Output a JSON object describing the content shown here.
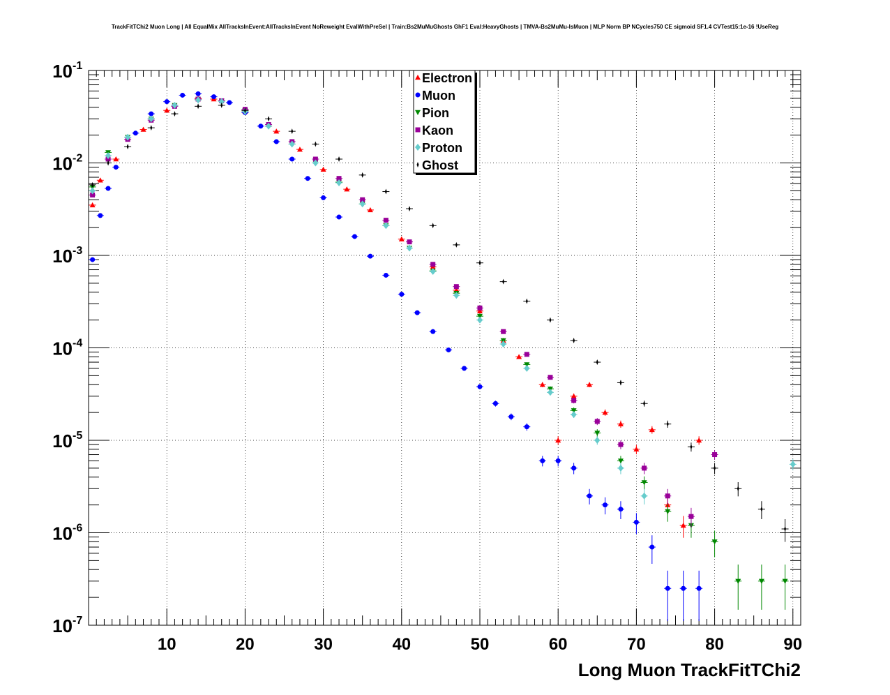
{
  "chart_data": {
    "type": "scatter",
    "title": "TrackFitTChi2 Muon Long | All EqualMix AllTracksInEvent:AllTracksInEvent NoReweight EvalWithPreSel | Train:Bs2MuMuGhosts GhF1 Eval:HeavyGhosts | TMVA-Bs2MuMu-IsMuon | MLP Norm BP NCycles750 CE sigmoid SF1.4 CVTest15:1e-16 !UseReg",
    "xlabel": "Long Muon TrackFitTChi2",
    "ylabel": "",
    "xlim": [
      0,
      91
    ],
    "ylim": [
      1e-07,
      0.1
    ],
    "log_y": true,
    "grid": true,
    "legend_position": "top-center",
    "x_ticks": [
      10,
      20,
      30,
      40,
      50,
      60,
      70,
      80,
      90
    ],
    "x_tick_labels": [
      "10",
      "20",
      "30",
      "40",
      "50",
      "60",
      "70",
      "80",
      "90"
    ],
    "y_ticks": [
      1e-07,
      1e-06,
      1e-05,
      0.0001,
      0.001,
      0.01,
      0.1
    ],
    "y_tick_labels": [
      {
        "base": "10",
        "exp": "-7"
      },
      {
        "base": "10",
        "exp": "-6"
      },
      {
        "base": "10",
        "exp": "-5"
      },
      {
        "base": "10",
        "exp": "-4"
      },
      {
        "base": "10",
        "exp": "-3"
      },
      {
        "base": "10",
        "exp": "-2"
      },
      {
        "base": "10",
        "exp": "-1"
      }
    ],
    "series": [
      {
        "name": "Electron",
        "color": "#ff0000",
        "marker": "triangle-up",
        "x": [
          0.5,
          1.5,
          3.5,
          7,
          10,
          14,
          16,
          20,
          24,
          27,
          30,
          33,
          36,
          40,
          44,
          47,
          50,
          53,
          55,
          58,
          60,
          62,
          64,
          66,
          68,
          70,
          72,
          74,
          76,
          78
        ],
        "y": [
          0.0035,
          0.0065,
          0.011,
          0.023,
          0.037,
          0.05,
          0.049,
          0.036,
          0.022,
          0.014,
          0.0085,
          0.0052,
          0.0031,
          0.0015,
          0.00075,
          0.00042,
          0.00025,
          0.00012,
          8e-05,
          4e-05,
          1e-05,
          3e-05,
          4e-05,
          2e-05,
          1.5e-05,
          8e-06,
          1.3e-05,
          2e-06,
          1.2e-06,
          1e-05
        ]
      },
      {
        "name": "Muon",
        "color": "#0000ff",
        "marker": "circle",
        "x": [
          0.5,
          1.5,
          2.5,
          3.5,
          6,
          8,
          10,
          12,
          14,
          16,
          18,
          20,
          22,
          24,
          26,
          28,
          30,
          32,
          34,
          36,
          38,
          40,
          42,
          44,
          46,
          48,
          50,
          52,
          54,
          56,
          58,
          60,
          62,
          64,
          66,
          68,
          70,
          72,
          74,
          76,
          78
        ],
        "y": [
          0.0009,
          0.0027,
          0.0053,
          0.009,
          0.021,
          0.034,
          0.046,
          0.054,
          0.056,
          0.052,
          0.045,
          0.035,
          0.025,
          0.017,
          0.011,
          0.0068,
          0.0042,
          0.0026,
          0.0016,
          0.00098,
          0.00061,
          0.00038,
          0.00024,
          0.00015,
          9.5e-05,
          6e-05,
          3.8e-05,
          2.5e-05,
          1.8e-05,
          1.4e-05,
          6e-06,
          6e-06,
          5e-06,
          2.5e-06,
          2e-06,
          1.8e-06,
          1.3e-06,
          7e-07,
          2.5e-07,
          2.5e-07,
          2.5e-07
        ]
      },
      {
        "name": "Pion",
        "color": "#008800",
        "marker": "triangle-down",
        "x": [
          0.5,
          2.5,
          5,
          8,
          11,
          14,
          17,
          20,
          23,
          26,
          29,
          32,
          35,
          38,
          41,
          44,
          47,
          50,
          53,
          56,
          59,
          62,
          65,
          68,
          71,
          74,
          77,
          80,
          83,
          86,
          89
        ],
        "y": [
          0.0055,
          0.013,
          0.019,
          0.03,
          0.042,
          0.049,
          0.047,
          0.037,
          0.025,
          0.016,
          0.01,
          0.0062,
          0.0036,
          0.0021,
          0.0012,
          0.00068,
          0.00039,
          0.00022,
          0.00012,
          6.6e-05,
          3.6e-05,
          2.1e-05,
          1.2e-05,
          6e-06,
          3.5e-06,
          1.7e-06,
          1.2e-06,
          8e-07,
          3e-07,
          3e-07,
          3e-07
        ]
      },
      {
        "name": "Kaon",
        "color": "#990099",
        "marker": "square",
        "x": [
          0.5,
          2.5,
          5,
          8,
          11,
          14,
          17,
          20,
          23,
          26,
          29,
          32,
          35,
          38,
          41,
          44,
          47,
          50,
          53,
          56,
          59,
          62,
          65,
          68,
          71,
          74,
          77,
          80
        ],
        "y": [
          0.0045,
          0.011,
          0.018,
          0.029,
          0.041,
          0.049,
          0.047,
          0.038,
          0.026,
          0.017,
          0.011,
          0.0068,
          0.004,
          0.0024,
          0.0014,
          0.0008,
          0.00046,
          0.00027,
          0.00015,
          8.5e-05,
          4.8e-05,
          2.7e-05,
          1.6e-05,
          9e-06,
          5e-06,
          2.5e-06,
          1.5e-06,
          7e-06
        ]
      },
      {
        "name": "Proton",
        "color": "#66cccc",
        "marker": "diamond",
        "x": [
          0.5,
          2.5,
          5,
          8,
          11,
          14,
          17,
          20,
          23,
          26,
          29,
          32,
          35,
          38,
          41,
          44,
          47,
          50,
          53,
          56,
          59,
          62,
          65,
          68,
          71,
          90
        ],
        "y": [
          0.005,
          0.012,
          0.019,
          0.03,
          0.042,
          0.048,
          0.046,
          0.036,
          0.025,
          0.016,
          0.01,
          0.0061,
          0.0036,
          0.0021,
          0.0012,
          0.00067,
          0.00037,
          0.0002,
          0.00011,
          6e-05,
          3.3e-05,
          1.9e-05,
          1e-05,
          5e-06,
          2.5e-06,
          5.5e-06
        ]
      },
      {
        "name": "Ghost",
        "color": "#000000",
        "marker": "star",
        "x": [
          0.5,
          2.5,
          5,
          8,
          11,
          14,
          17,
          20,
          23,
          26,
          29,
          32,
          35,
          38,
          41,
          44,
          47,
          50,
          53,
          56,
          59,
          62,
          65,
          68,
          71,
          74,
          77,
          80,
          83,
          86,
          89
        ],
        "y": [
          0.0058,
          0.01,
          0.015,
          0.024,
          0.034,
          0.041,
          0.042,
          0.037,
          0.03,
          0.022,
          0.016,
          0.011,
          0.0074,
          0.0049,
          0.0032,
          0.0021,
          0.0013,
          0.00083,
          0.00052,
          0.00032,
          0.0002,
          0.00012,
          7e-05,
          4.2e-05,
          2.5e-05,
          1.5e-05,
          8.5e-06,
          5e-06,
          3e-06,
          1.8e-06,
          1.1e-06
        ]
      }
    ]
  }
}
